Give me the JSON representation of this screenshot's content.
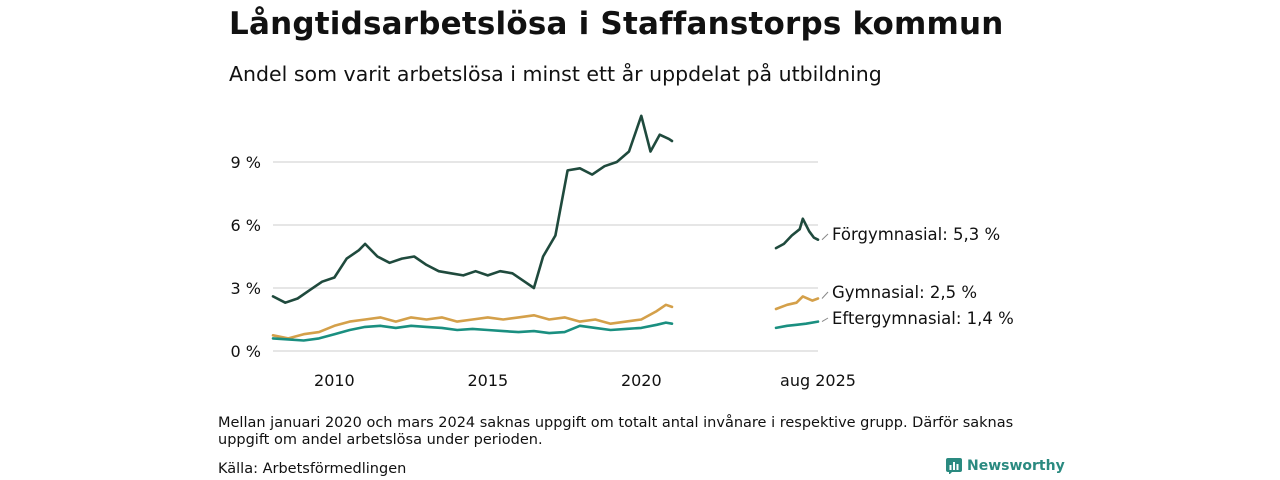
{
  "title": "Långtidsarbetslösa i Staffanstorps kommun",
  "subtitle": "Andel som varit arbetslösa i minst ett år uppdelat på utbildning",
  "note": "Mellan januari 2020 och mars 2024 saknas uppgift om totalt antal invånare i respektive grupp. Därför saknas uppgift om andel arbetslösa under perioden.",
  "source": "Källa: Arbetsförmedlingen",
  "brand": "Newsworthy",
  "colors": {
    "forgymnasial": "#1f4a3d",
    "gymnasial": "#d4a04a",
    "eftergymnasial": "#1a8f80",
    "grid": "#dddddd",
    "brand": "#2a8a80"
  },
  "chart_data": {
    "type": "line",
    "title": "Långtidsarbetslösa i Staffanstorps kommun",
    "subtitle": "Andel som varit arbetslösa i minst ett år uppdelat på utbildning",
    "ylim": [
      0,
      11
    ],
    "y_ticks": [
      0,
      3,
      6,
      9
    ],
    "y_tick_labels": [
      "0 %",
      "3 %",
      "6 %",
      "9 %"
    ],
    "x_tick_labels": [
      {
        "x": 2010,
        "label": "2010"
      },
      {
        "x": 2015,
        "label": "2015"
      },
      {
        "x": 2020,
        "label": "2020"
      }
    ],
    "end_label": "aug 2025",
    "segments": [
      {
        "x_start": 2008.0,
        "x_end": 2021.0
      },
      {
        "x_start": 2024.25,
        "x_end": 2025.58
      }
    ],
    "series": [
      {
        "name": "Förgymnasial",
        "end_label": "Förgymnasial: 5,3 %",
        "color_key": "forgymnasial",
        "points": [
          [
            2008.0,
            2.6
          ],
          [
            2008.4,
            2.3
          ],
          [
            2008.8,
            2.5
          ],
          [
            2009.2,
            2.9
          ],
          [
            2009.6,
            3.3
          ],
          [
            2010.0,
            3.5
          ],
          [
            2010.4,
            4.4
          ],
          [
            2010.8,
            4.8
          ],
          [
            2011.0,
            5.1
          ],
          [
            2011.4,
            4.5
          ],
          [
            2011.8,
            4.2
          ],
          [
            2012.2,
            4.4
          ],
          [
            2012.6,
            4.5
          ],
          [
            2013.0,
            4.1
          ],
          [
            2013.4,
            3.8
          ],
          [
            2013.8,
            3.7
          ],
          [
            2014.2,
            3.6
          ],
          [
            2014.6,
            3.8
          ],
          [
            2015.0,
            3.6
          ],
          [
            2015.4,
            3.8
          ],
          [
            2015.8,
            3.7
          ],
          [
            2016.2,
            3.3
          ],
          [
            2016.5,
            3.0
          ],
          [
            2016.8,
            4.5
          ],
          [
            2017.2,
            5.5
          ],
          [
            2017.6,
            8.6
          ],
          [
            2018.0,
            8.7
          ],
          [
            2018.4,
            8.4
          ],
          [
            2018.8,
            8.8
          ],
          [
            2019.2,
            9.0
          ],
          [
            2019.6,
            9.5
          ],
          [
            2020.0,
            11.2
          ],
          [
            2020.3,
            9.5
          ],
          [
            2020.6,
            10.3
          ],
          [
            2020.9,
            10.1
          ],
          [
            2021.0,
            10.0
          ],
          [
            2024.25,
            4.9
          ],
          [
            2024.5,
            5.1
          ],
          [
            2024.75,
            5.5
          ],
          [
            2025.0,
            5.8
          ],
          [
            2025.1,
            6.3
          ],
          [
            2025.3,
            5.7
          ],
          [
            2025.45,
            5.4
          ],
          [
            2025.58,
            5.3
          ]
        ]
      },
      {
        "name": "Gymnasial",
        "end_label": "Gymnasial: 2,5 %",
        "color_key": "gymnasial",
        "points": [
          [
            2008.0,
            0.75
          ],
          [
            2008.5,
            0.6
          ],
          [
            2009.0,
            0.8
          ],
          [
            2009.5,
            0.9
          ],
          [
            2010.0,
            1.2
          ],
          [
            2010.5,
            1.4
          ],
          [
            2011.0,
            1.5
          ],
          [
            2011.5,
            1.6
          ],
          [
            2012.0,
            1.4
          ],
          [
            2012.5,
            1.6
          ],
          [
            2013.0,
            1.5
          ],
          [
            2013.5,
            1.6
          ],
          [
            2014.0,
            1.4
          ],
          [
            2014.5,
            1.5
          ],
          [
            2015.0,
            1.6
          ],
          [
            2015.5,
            1.5
          ],
          [
            2016.0,
            1.6
          ],
          [
            2016.5,
            1.7
          ],
          [
            2017.0,
            1.5
          ],
          [
            2017.5,
            1.6
          ],
          [
            2018.0,
            1.4
          ],
          [
            2018.5,
            1.5
          ],
          [
            2019.0,
            1.3
          ],
          [
            2019.5,
            1.4
          ],
          [
            2020.0,
            1.5
          ],
          [
            2020.5,
            1.9
          ],
          [
            2020.8,
            2.2
          ],
          [
            2021.0,
            2.1
          ],
          [
            2024.25,
            2.0
          ],
          [
            2024.6,
            2.2
          ],
          [
            2024.9,
            2.3
          ],
          [
            2025.1,
            2.6
          ],
          [
            2025.4,
            2.4
          ],
          [
            2025.58,
            2.5
          ]
        ]
      },
      {
        "name": "Eftergymnasial",
        "end_label": "Eftergymnasial: 1,4 %",
        "color_key": "eftergymnasial",
        "points": [
          [
            2008.0,
            0.6
          ],
          [
            2008.5,
            0.55
          ],
          [
            2009.0,
            0.5
          ],
          [
            2009.5,
            0.6
          ],
          [
            2010.0,
            0.8
          ],
          [
            2010.5,
            1.0
          ],
          [
            2011.0,
            1.15
          ],
          [
            2011.5,
            1.2
          ],
          [
            2012.0,
            1.1
          ],
          [
            2012.5,
            1.2
          ],
          [
            2013.0,
            1.15
          ],
          [
            2013.5,
            1.1
          ],
          [
            2014.0,
            1.0
          ],
          [
            2014.5,
            1.05
          ],
          [
            2015.0,
            1.0
          ],
          [
            2015.5,
            0.95
          ],
          [
            2016.0,
            0.9
          ],
          [
            2016.5,
            0.95
          ],
          [
            2017.0,
            0.85
          ],
          [
            2017.5,
            0.9
          ],
          [
            2018.0,
            1.2
          ],
          [
            2018.5,
            1.1
          ],
          [
            2019.0,
            1.0
          ],
          [
            2019.5,
            1.05
          ],
          [
            2020.0,
            1.1
          ],
          [
            2020.5,
            1.25
          ],
          [
            2020.8,
            1.35
          ],
          [
            2021.0,
            1.3
          ],
          [
            2024.25,
            1.1
          ],
          [
            2024.6,
            1.2
          ],
          [
            2024.9,
            1.25
          ],
          [
            2025.2,
            1.3
          ],
          [
            2025.58,
            1.4
          ]
        ]
      }
    ]
  }
}
